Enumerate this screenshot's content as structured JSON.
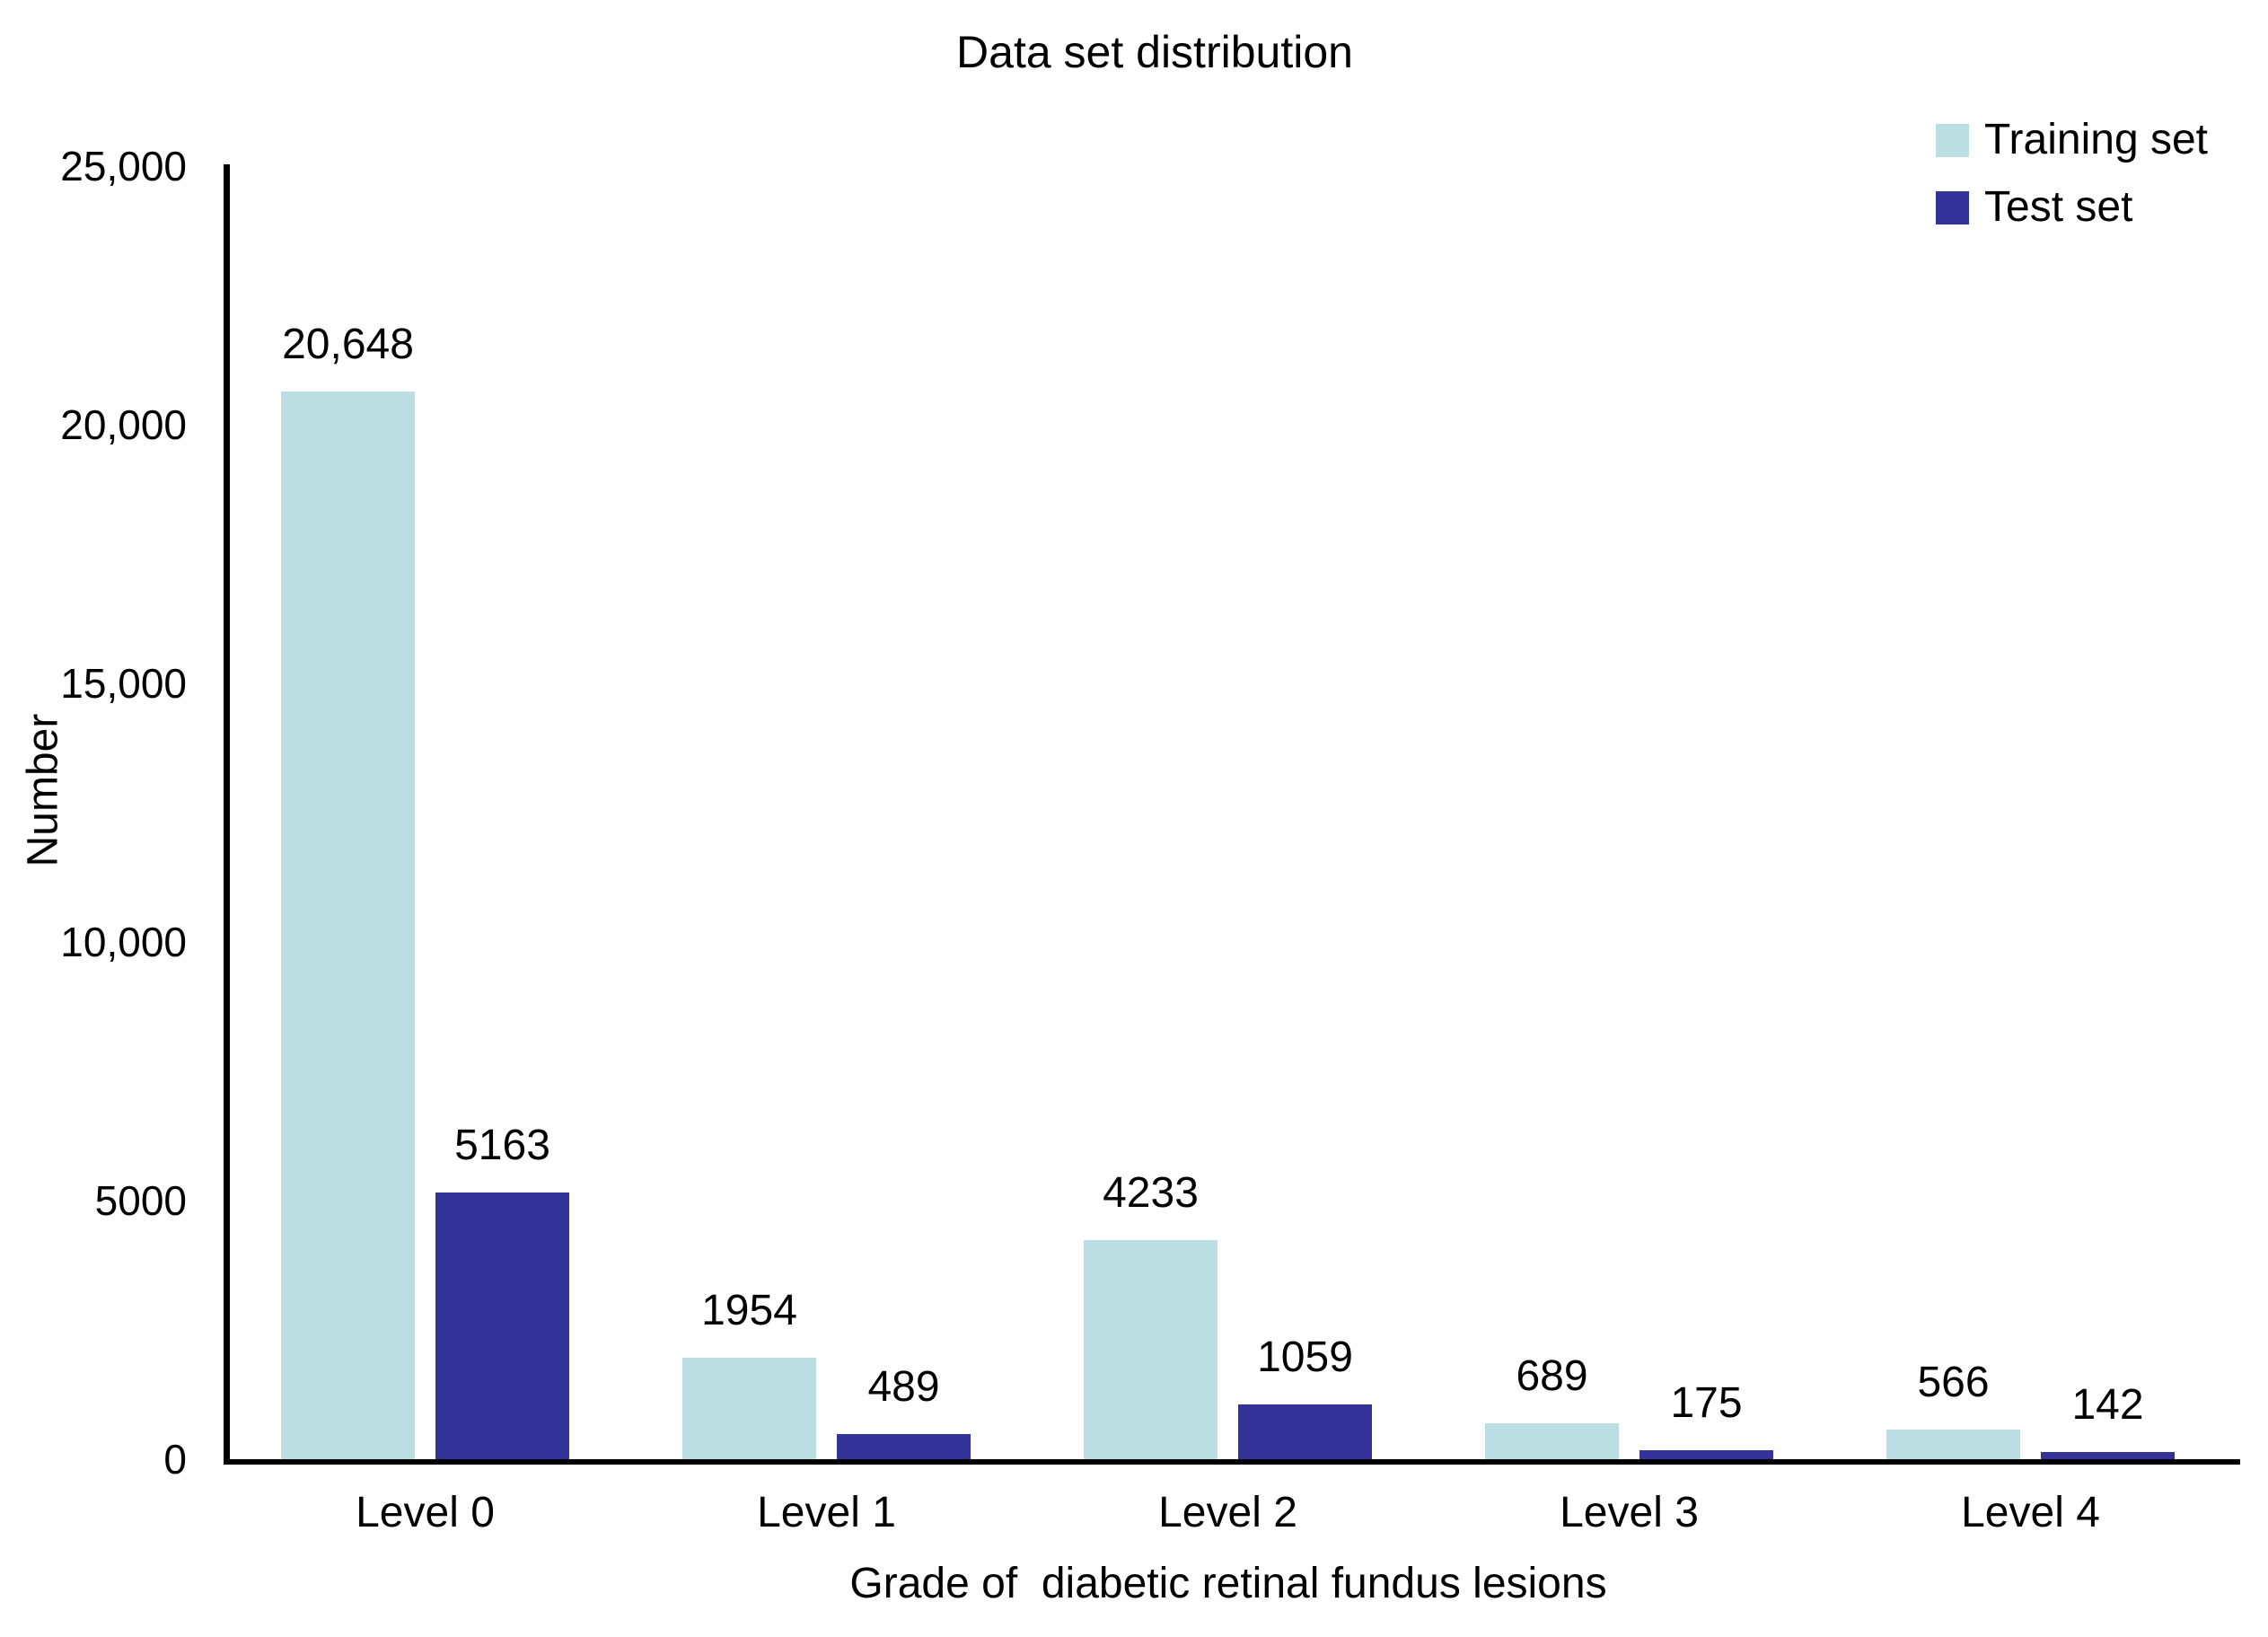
{
  "chart_data": {
    "type": "bar",
    "title": "Data set distribution",
    "xlabel": "Grade of  diabetic retinal fundus lesions",
    "ylabel": "Number",
    "categories": [
      "Level 0",
      "Level 1",
      "Level 2",
      "Level 3",
      "Level 4"
    ],
    "series": [
      {
        "name": "Training set",
        "color": "#badee2",
        "values": [
          20648,
          1954,
          4233,
          689,
          566
        ],
        "value_labels": [
          "20,648",
          "1954",
          "4233",
          "689",
          "566"
        ]
      },
      {
        "name": "Test set",
        "color": "#343399",
        "values": [
          5163,
          489,
          1059,
          175,
          142
        ],
        "value_labels": [
          "5163",
          "489",
          "1059",
          "175",
          "142"
        ]
      }
    ],
    "ylim": [
      0,
      25000
    ],
    "yticks": {
      "values": [
        0,
        5000,
        10000,
        15000,
        20000,
        25000
      ],
      "labels": [
        "0",
        "5000",
        "10,000",
        "15,000",
        "20,000",
        "25,000"
      ]
    },
    "grid": false,
    "legend_position": "top-right",
    "text_color": "#000000",
    "axis_color": "#000000"
  }
}
